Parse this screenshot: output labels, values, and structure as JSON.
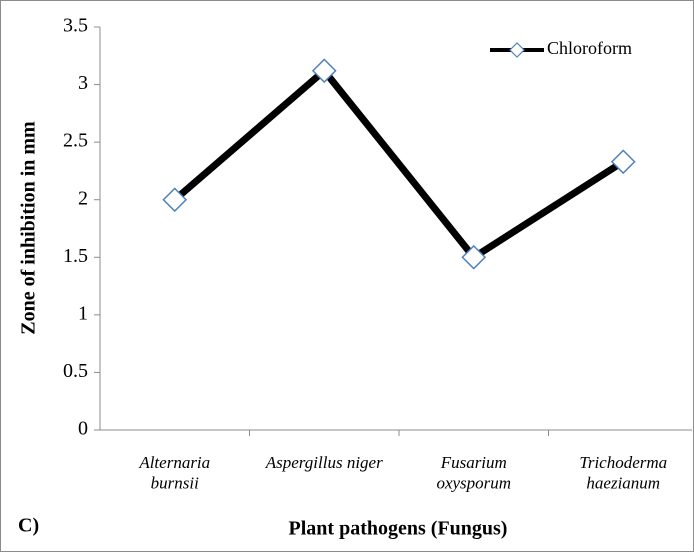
{
  "chart_data": {
    "type": "line",
    "categories": [
      "Alternaria\nburnsii",
      "Aspergillus niger",
      "Fusarium\noxysporum",
      "Trichoderma\nhaezianum"
    ],
    "series": [
      {
        "name": "Chloroform",
        "color": "#000000",
        "marker_edge": "#4f81bd",
        "values": [
          2,
          3.12,
          1.5,
          2.33
        ]
      }
    ],
    "ylim": [
      0,
      3.5
    ],
    "yticks": [
      0,
      0.5,
      1,
      1.5,
      2,
      2.5,
      3,
      3.5
    ],
    "ylabel": "Zone of inhibition in mm",
    "xlabel": "Plant pathogens (Fungus)",
    "annotation": "C)",
    "legend": "top-right",
    "grid": false
  }
}
